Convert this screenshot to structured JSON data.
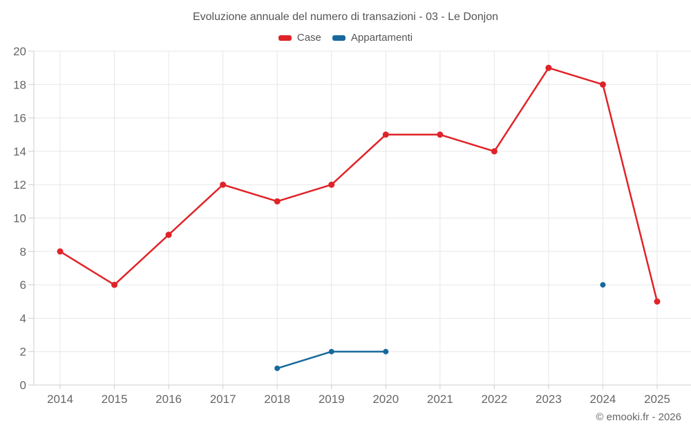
{
  "title": "Evoluzione annuale del numero di transazioni - 03 - Le Donjon",
  "footer": "© emooki.fr - 2026",
  "legend": {
    "items": [
      {
        "label": "Case",
        "color": "#e02328"
      },
      {
        "label": "Appartamenti",
        "color": "#17699c"
      }
    ]
  },
  "colors": {
    "grid": "#e7e7e7",
    "axis": "#cccccc",
    "title_text": "#555555",
    "axis_text": "#666666",
    "background": "#ffffff",
    "case_red": "#e02328",
    "appartamenti_blue": "#17699c"
  },
  "chart_data": {
    "type": "line",
    "title": "Evoluzione annuale del numero di transazioni - 03 - Le Donjon",
    "xlabel": "",
    "ylabel": "",
    "categories": [
      "2014",
      "2015",
      "2016",
      "2017",
      "2018",
      "2019",
      "2020",
      "2021",
      "2022",
      "2023",
      "2024",
      "2025"
    ],
    "series": [
      {
        "name": "Case",
        "color": "#e02328",
        "values": [
          8,
          6,
          9,
          12,
          11,
          12,
          15,
          15,
          14,
          19,
          18,
          5
        ]
      },
      {
        "name": "Appartamenti",
        "color": "#17699c",
        "values": [
          null,
          null,
          null,
          null,
          1,
          2,
          2,
          null,
          null,
          null,
          6,
          null
        ]
      }
    ],
    "ylim": [
      0,
      20
    ],
    "ytick_step": 2,
    "yticks": [
      0,
      2,
      4,
      6,
      8,
      10,
      12,
      14,
      16,
      18,
      20
    ],
    "grid": true,
    "legend_position": "top"
  }
}
